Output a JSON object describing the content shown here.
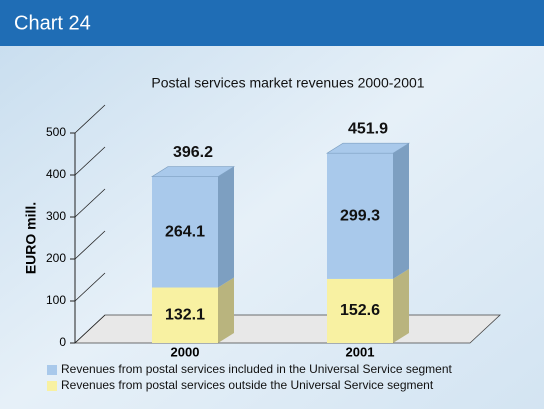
{
  "header": "Chart 24",
  "chart_data": {
    "type": "stacked-bar-3d",
    "title": "Postal services market revenues 2000-2001",
    "y_label": "EURO mill.",
    "categories": [
      "2000",
      "2001"
    ],
    "series": [
      {
        "name": "Revenues from postal services outside the Universal Service segment",
        "color": "#f8f1a2",
        "side_color": "#b9b47e",
        "values": [
          132.1,
          152.6
        ]
      },
      {
        "name": "Revenues from postal services included in the Universal Service segment",
        "color": "#a9c9eb",
        "side_color": "#7d9fc1",
        "values": [
          264.1,
          299.3
        ]
      }
    ],
    "totals": [
      396.2,
      451.9
    ],
    "ylim": [
      0,
      500
    ],
    "yticks": [
      0,
      100,
      200,
      300,
      400,
      500
    ]
  }
}
